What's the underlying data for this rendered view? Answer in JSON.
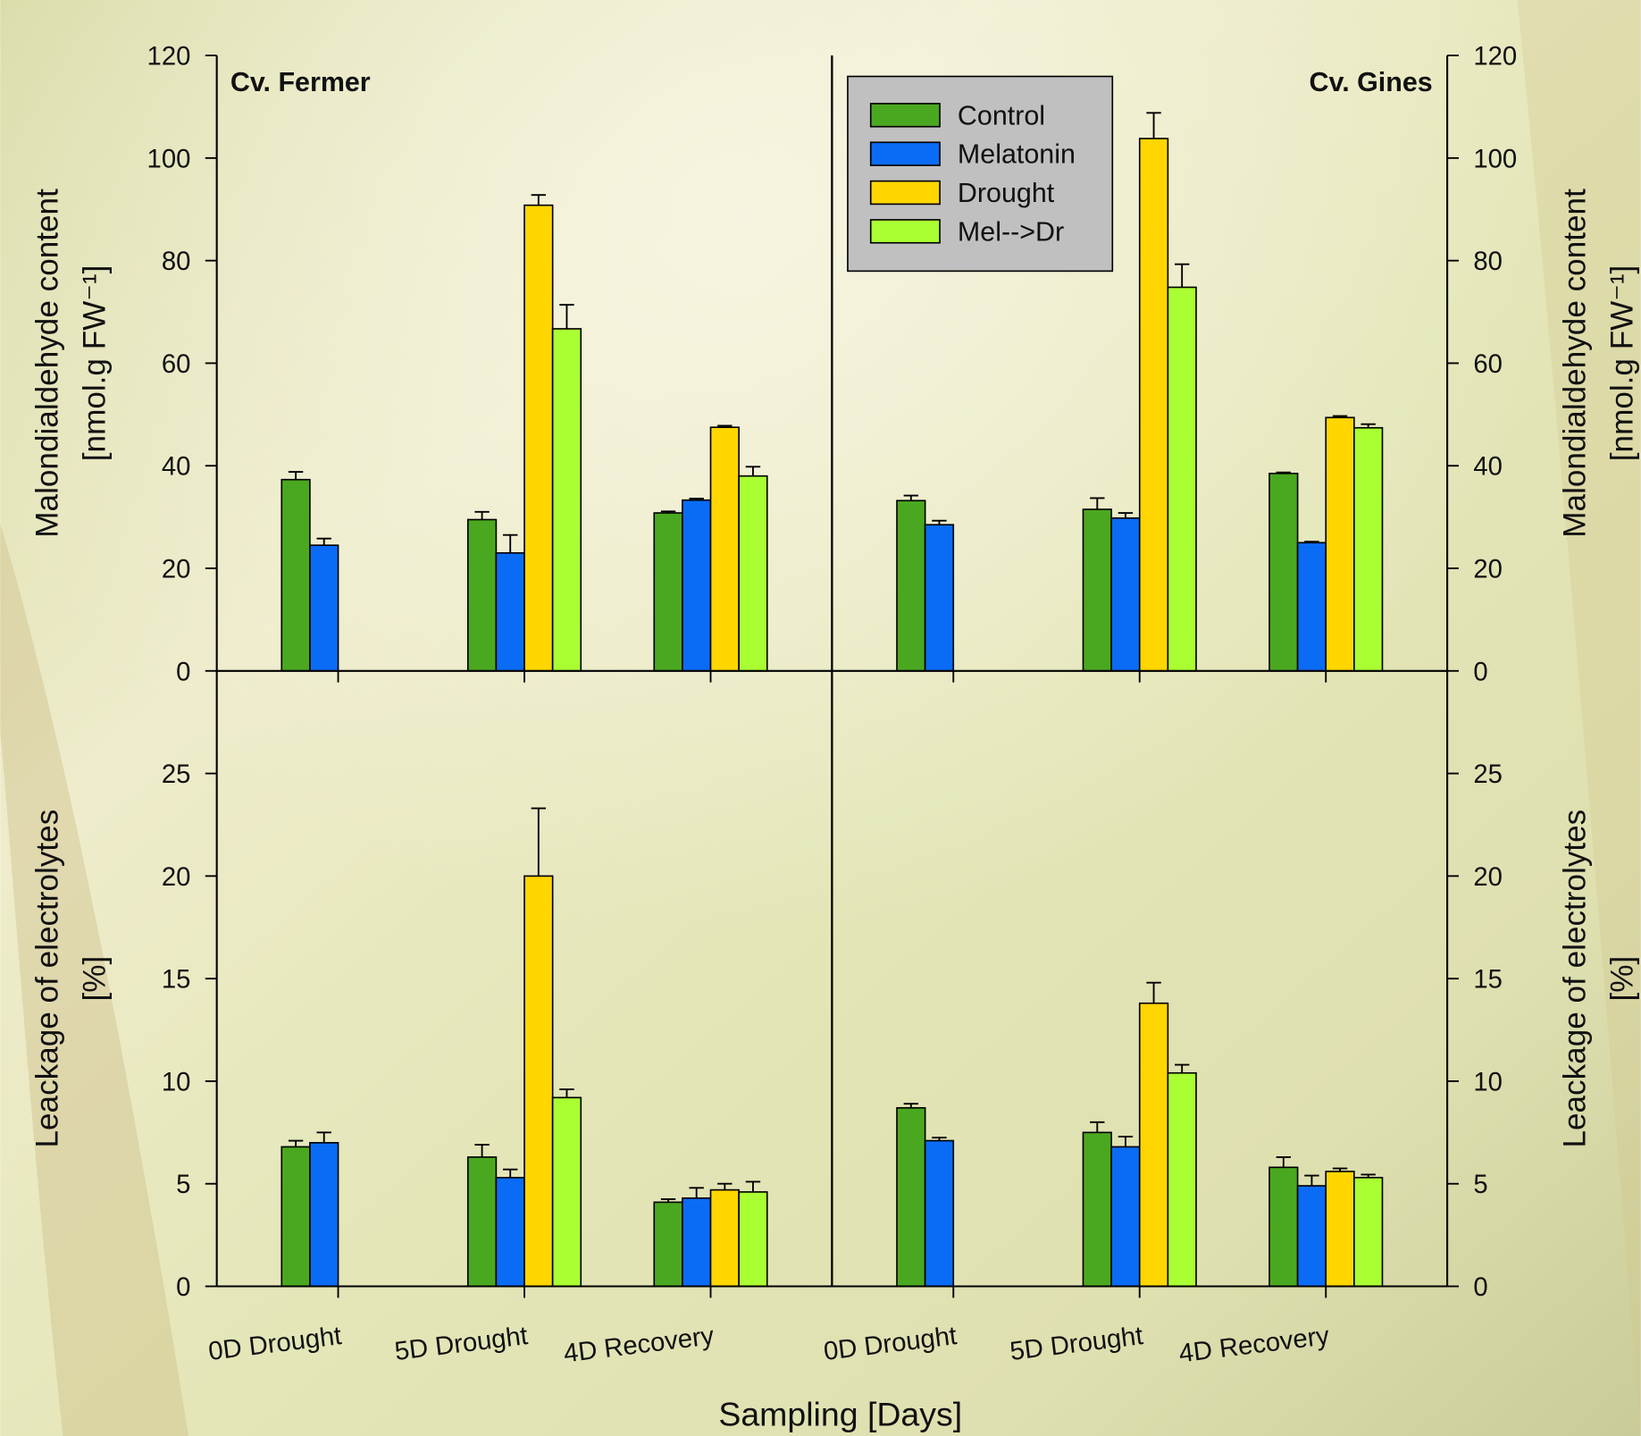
{
  "chart_data": [
    {
      "type": "bar",
      "title": "Cv. Fermer",
      "ylabel": [
        "Malondialdehyde content",
        "[nmol.g FW⁻¹]"
      ],
      "categories": [
        null,
        null,
        null
      ],
      "series": [
        {
          "color": "#4aa820",
          "values": [
            37.3,
            29.5,
            30.8
          ],
          "errors": [
            1.5,
            1.5,
            0.3
          ]
        },
        {
          "color": "#0a6cf5",
          "values": [
            24.5,
            23,
            33.3
          ],
          "errors": [
            1.3,
            3.5,
            0.3
          ]
        },
        {
          "color": "#ffd600",
          "values": [
            null,
            90.8,
            47.5
          ],
          "errors": [
            null,
            2,
            0.3
          ]
        },
        {
          "color": "#aaff33",
          "values": [
            null,
            66.7,
            38
          ],
          "errors": [
            null,
            4.7,
            1.8
          ]
        }
      ],
      "ylim": [
        0,
        120
      ],
      "yticks": [
        0,
        20,
        40,
        60,
        80,
        100,
        120
      ]
    },
    {
      "type": "bar",
      "title": "Cv. Gines",
      "ylabel": [
        "Malondialdehyde content",
        "[nmol.g FW⁻¹]"
      ],
      "categories": [
        null,
        null,
        null
      ],
      "series": [
        {
          "name": "Control",
          "color": "#4aa820",
          "values": [
            33.2,
            31.5,
            38.5
          ],
          "errors": [
            1,
            2.2,
            0.2
          ]
        },
        {
          "name": "Melatonin",
          "color": "#0a6cf5",
          "values": [
            28.5,
            29.8,
            25
          ],
          "errors": [
            0.8,
            1,
            0.2
          ]
        },
        {
          "name": "Drought",
          "color": "#ffd600",
          "values": [
            null,
            103.8,
            49.4
          ],
          "errors": [
            null,
            5,
            0.3
          ]
        },
        {
          "name": "Mel-->Dr",
          "color": "#aaff33",
          "values": [
            null,
            74.8,
            47.4
          ],
          "errors": [
            null,
            4.5,
            0.7
          ]
        }
      ],
      "ylim": [
        0,
        120
      ],
      "yticks": [
        0,
        20,
        40,
        60,
        80,
        100,
        120
      ]
    },
    {
      "type": "bar",
      "ylabel": [
        "Leackage of electrolytes",
        "[%]"
      ],
      "xlabel": "Sampling [Days]",
      "categories": [
        "0D Drought",
        "5D Drought",
        "4D Recovery"
      ],
      "series": [
        {
          "color": "#4aa820",
          "values": [
            6.8,
            6.3,
            4.1
          ],
          "errors": [
            0.3,
            0.6,
            0.15
          ]
        },
        {
          "color": "#0a6cf5",
          "values": [
            7.0,
            5.3,
            4.3
          ],
          "errors": [
            0.5,
            0.4,
            0.5
          ]
        },
        {
          "color": "#ffd600",
          "values": [
            null,
            20,
            4.7
          ],
          "errors": [
            null,
            3.3,
            0.3
          ]
        },
        {
          "color": "#aaff33",
          "values": [
            null,
            9.2,
            4.6
          ],
          "errors": [
            null,
            0.4,
            0.5
          ]
        }
      ],
      "ylim": [
        0,
        30
      ],
      "yticks": [
        0,
        5,
        10,
        15,
        20,
        25
      ]
    },
    {
      "type": "bar",
      "ylabel": [
        "Leackage of electrolytes",
        "[%]"
      ],
      "categories": [
        "0D Drought",
        "5D Drought",
        "4D Recovery"
      ],
      "series": [
        {
          "color": "#4aa820",
          "values": [
            8.7,
            7.5,
            5.8
          ],
          "errors": [
            0.2,
            0.5,
            0.5
          ]
        },
        {
          "color": "#0a6cf5",
          "values": [
            7.1,
            6.8,
            4.9
          ],
          "errors": [
            0.15,
            0.5,
            0.5
          ]
        },
        {
          "color": "#ffd600",
          "values": [
            null,
            13.8,
            5.6
          ],
          "errors": [
            null,
            1.0,
            0.15
          ]
        },
        {
          "color": "#aaff33",
          "values": [
            null,
            10.4,
            5.3
          ],
          "errors": [
            null,
            0.4,
            0.15
          ]
        }
      ],
      "ylim": [
        0,
        30
      ],
      "yticks": [
        0,
        5,
        10,
        15,
        20,
        25
      ]
    }
  ]
}
